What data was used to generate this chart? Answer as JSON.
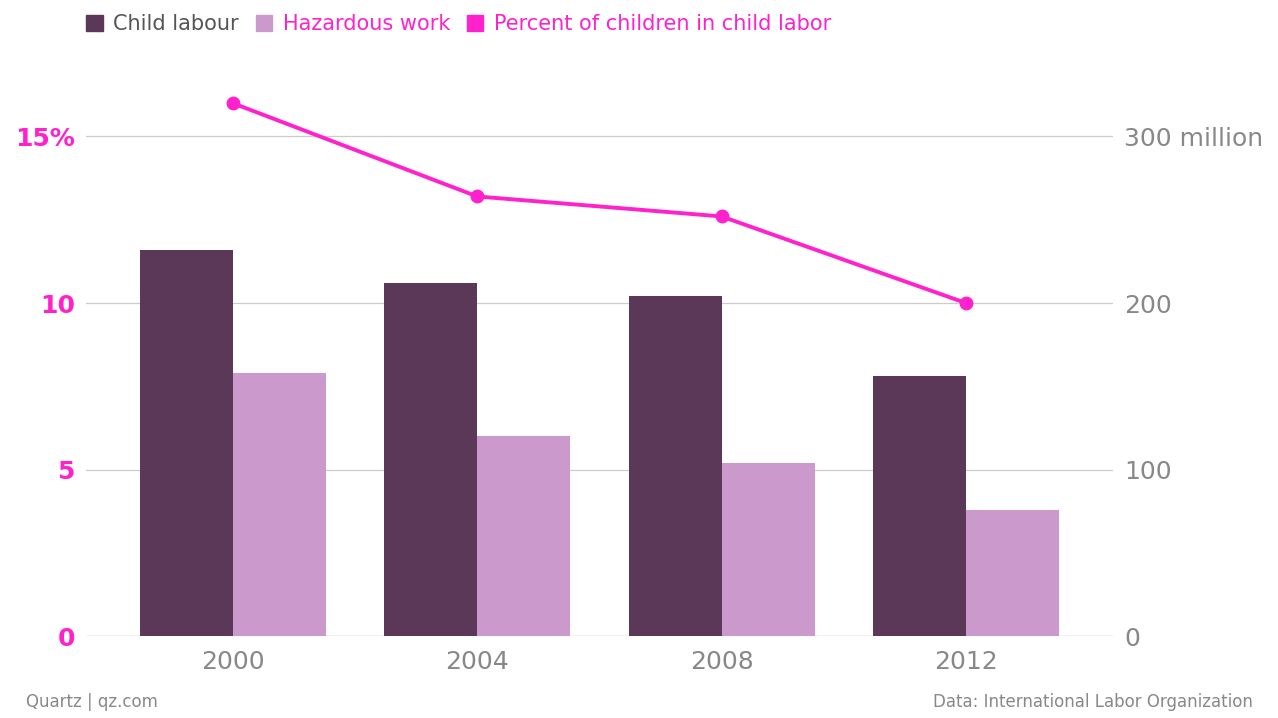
{
  "years": [
    2000,
    2004,
    2008,
    2012
  ],
  "child_labour": [
    11.6,
    10.6,
    10.2,
    7.8
  ],
  "hazardous_work": [
    7.9,
    6.0,
    5.2,
    3.8
  ],
  "percent_line": [
    16.0,
    13.2,
    12.6,
    10.0
  ],
  "child_labour_color": "#5b3858",
  "hazardous_work_color": "#cc99cc",
  "line_color": "#ff22cc",
  "background_color": "#ffffff",
  "left_yticks": [
    0,
    5,
    10,
    15
  ],
  "right_yticks": [
    0,
    100,
    200,
    300
  ],
  "ylim_left": [
    0,
    16.8
  ],
  "ylim_right": [
    0,
    336
  ],
  "xlabel_source": "Data: International Labor Organization",
  "xlabel_quartz": "Quartz | qz.com",
  "legend_child_labour": "Child labour",
  "legend_hazardous": "Hazardous work",
  "legend_percent": "Percent of children in child labor",
  "bar_width": 0.38,
  "grid_color": "#cccccc",
  "tick_label_color_left": "#ff22cc",
  "tick_label_color_right": "#888888",
  "tick_label_color_x": "#888888"
}
